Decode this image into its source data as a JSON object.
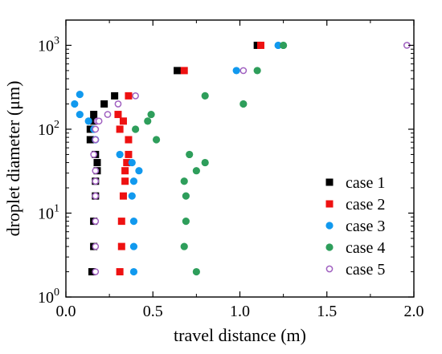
{
  "chart_data": {
    "type": "scatter",
    "title": "",
    "xlabel": "travel distance (m)",
    "ylabel": "droplet diameter (μm)",
    "xlim": [
      0.0,
      2.0
    ],
    "ylim": [
      1,
      2000
    ],
    "yscale": "log",
    "x_ticks": [
      "0.0",
      "0.5",
      "1.0",
      "1.5",
      "2.0"
    ],
    "y_ticks": [
      {
        "base": "10",
        "exp": "0"
      },
      {
        "base": "10",
        "exp": "1"
      },
      {
        "base": "10",
        "exp": "2"
      },
      {
        "base": "10",
        "exp": "3"
      }
    ],
    "legend_position": "lower-right",
    "series": [
      {
        "name": "case 1",
        "marker": "square",
        "color": "#000000",
        "points": [
          [
            0.15,
            2
          ],
          [
            0.16,
            4
          ],
          [
            0.16,
            8
          ],
          [
            0.17,
            16
          ],
          [
            0.17,
            24
          ],
          [
            0.18,
            32
          ],
          [
            0.18,
            40
          ],
          [
            0.17,
            50
          ],
          [
            0.14,
            75
          ],
          [
            0.14,
            100
          ],
          [
            0.16,
            125
          ],
          [
            0.16,
            150
          ],
          [
            0.22,
            200
          ],
          [
            0.28,
            250
          ],
          [
            0.64,
            500
          ],
          [
            1.1,
            1000
          ]
        ]
      },
      {
        "name": "case 2",
        "marker": "square",
        "color": "#ee1111",
        "points": [
          [
            0.31,
            2
          ],
          [
            0.32,
            4
          ],
          [
            0.32,
            8
          ],
          [
            0.33,
            16
          ],
          [
            0.34,
            24
          ],
          [
            0.34,
            32
          ],
          [
            0.35,
            40
          ],
          [
            0.36,
            50
          ],
          [
            0.36,
            75
          ],
          [
            0.31,
            100
          ],
          [
            0.33,
            125
          ],
          [
            0.3,
            150
          ],
          [
            0.36,
            250
          ],
          [
            0.68,
            500
          ],
          [
            1.12,
            1000
          ]
        ]
      },
      {
        "name": "case 3",
        "marker": "circle",
        "color": "#1199ee",
        "points": [
          [
            0.39,
            2
          ],
          [
            0.39,
            4
          ],
          [
            0.39,
            8
          ],
          [
            0.38,
            16
          ],
          [
            0.39,
            24
          ],
          [
            0.42,
            32
          ],
          [
            0.38,
            40
          ],
          [
            0.31,
            50
          ],
          [
            0.17,
            75
          ],
          [
            0.16,
            100
          ],
          [
            0.13,
            125
          ],
          [
            0.08,
            150
          ],
          [
            0.05,
            200
          ],
          [
            0.08,
            260
          ],
          [
            0.98,
            500
          ],
          [
            1.22,
            1000
          ]
        ]
      },
      {
        "name": "case 4",
        "marker": "circle",
        "color": "#2e9e5b",
        "points": [
          [
            0.75,
            2
          ],
          [
            0.68,
            4
          ],
          [
            0.69,
            8
          ],
          [
            0.69,
            16
          ],
          [
            0.68,
            24
          ],
          [
            0.75,
            32
          ],
          [
            0.8,
            40
          ],
          [
            0.71,
            50
          ],
          [
            0.52,
            75
          ],
          [
            0.4,
            100
          ],
          [
            0.47,
            125
          ],
          [
            0.49,
            150
          ],
          [
            1.02,
            200
          ],
          [
            0.8,
            250
          ],
          [
            1.1,
            500
          ],
          [
            1.25,
            1000
          ]
        ]
      },
      {
        "name": "case 5",
        "marker": "open-circle",
        "color": "#a060c0",
        "points": [
          [
            0.17,
            2
          ],
          [
            0.17,
            4
          ],
          [
            0.17,
            8
          ],
          [
            0.17,
            16
          ],
          [
            0.17,
            24
          ],
          [
            0.17,
            32
          ],
          [
            0.16,
            50
          ],
          [
            0.17,
            75
          ],
          [
            0.17,
            100
          ],
          [
            0.18,
            125
          ],
          [
            0.19,
            125
          ],
          [
            0.24,
            150
          ],
          [
            0.3,
            200
          ],
          [
            0.4,
            250
          ],
          [
            1.02,
            500
          ],
          [
            1.96,
            1000
          ]
        ]
      }
    ]
  }
}
